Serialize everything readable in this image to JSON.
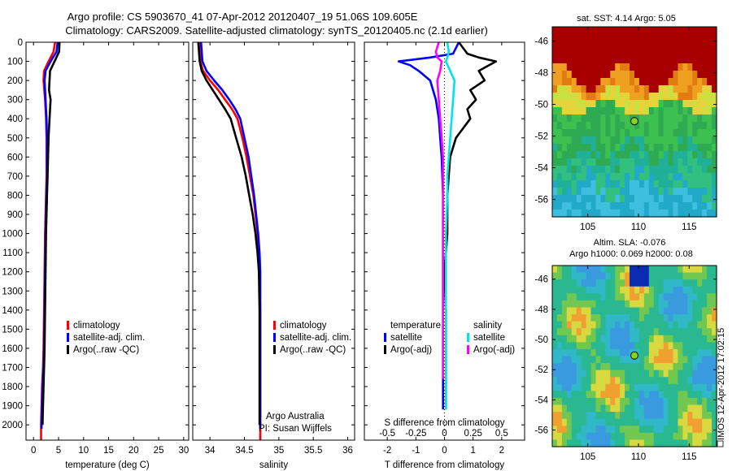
{
  "title": {
    "line1": "Argo profile: CS 5903670_41 07-Apr-2012 20120407_19 51.06S 109.605E",
    "line2": "Climatology: CARS2009. Satellite-adjusted climatology: synTS_20120405.nc (2.1d earlier)"
  },
  "colors": {
    "climatology": "#ff0000",
    "satellite": "#0000ff",
    "argo": "#000000",
    "sat_salinity": "#00e5e5",
    "argo_salinity": "#ff00ff"
  },
  "footer_credit": {
    "line1": "Argo Australia",
    "line2": "PI: Susan Wijffels"
  },
  "side_label": "IMOS 12-Apr-2012 17:02:15",
  "chart_data": [
    {
      "id": "temperature",
      "type": "line",
      "xlabel": "temperature (deg C)",
      "xticks": [
        "0",
        "5",
        "10",
        "15",
        "20",
        "25",
        "30"
      ],
      "xlim": [
        -1.5,
        31
      ],
      "ylim": [
        0,
        2080
      ],
      "yticks": [
        "0",
        "100",
        "200",
        "300",
        "400",
        "500",
        "600",
        "700",
        "800",
        "900",
        "1000",
        "1100",
        "1200",
        "1300",
        "1400",
        "1500",
        "1600",
        "1700",
        "1800",
        "1900",
        "2000"
      ],
      "legend": [
        "climatology",
        "satellite-adj. clim.",
        "Argo(..raw -QC)"
      ],
      "series": [
        {
          "name": "climatology",
          "color": "#ff0000",
          "x": [
            4.3,
            4.0,
            3.0,
            2.1,
            2.0,
            2.3,
            2.5,
            2.6,
            2.6,
            2.6,
            2.5,
            2.4,
            2.3,
            2.2,
            2.1,
            2.0,
            1.9,
            1.7,
            1.6,
            1.5,
            1.5
          ],
          "y": [
            0,
            50,
            100,
            150,
            200,
            300,
            400,
            500,
            600,
            700,
            800,
            900,
            1000,
            1200,
            1400,
            1600,
            1700,
            1800,
            1900,
            2000,
            2080
          ]
        },
        {
          "name": "satellite-adj. clim.",
          "color": "#0000ff",
          "x": [
            4.8,
            4.6,
            3.4,
            2.4,
            2.2,
            2.4,
            2.6,
            2.7,
            2.7,
            2.7,
            2.6,
            2.5,
            2.4,
            2.3,
            2.2,
            2.1,
            2.0,
            1.8,
            1.7,
            1.6,
            1.6
          ],
          "y": [
            0,
            50,
            100,
            150,
            200,
            300,
            400,
            500,
            600,
            700,
            800,
            900,
            1000,
            1200,
            1400,
            1600,
            1700,
            1800,
            1900,
            2000,
            2020
          ]
        },
        {
          "name": "Argo(..raw -QC)",
          "color": "#000000",
          "x": [
            5.2,
            5.1,
            4.2,
            3.3,
            3.2,
            3.1,
            3.4,
            3.2,
            3.0,
            2.9,
            2.8,
            2.7,
            2.6,
            2.5,
            2.4,
            2.3,
            2.2,
            2.1,
            2.0,
            1.9,
            1.8
          ],
          "y": [
            0,
            50,
            100,
            150,
            200,
            250,
            300,
            400,
            500,
            600,
            700,
            800,
            900,
            1000,
            1200,
            1400,
            1600,
            1700,
            1800,
            1900,
            2000
          ]
        }
      ]
    },
    {
      "id": "salinity",
      "type": "line",
      "xlabel": "salinity",
      "xticks": [
        "34",
        "34.5",
        "35",
        "35.5",
        "36"
      ],
      "xlim": [
        33.75,
        36.1
      ],
      "ylim": [
        0,
        2080
      ],
      "legend": [
        "climatology",
        "satellite-adj. clim.",
        "Argo(..raw -QC)"
      ],
      "series": [
        {
          "name": "climatology",
          "color": "#ff0000",
          "x": [
            33.85,
            33.86,
            33.9,
            34.0,
            34.12,
            34.22,
            34.32,
            34.4,
            34.47,
            34.53,
            34.58,
            34.63,
            34.66,
            34.69,
            34.71,
            34.72,
            34.73,
            34.73,
            34.73,
            34.73,
            34.73
          ],
          "y": [
            0,
            100,
            150,
            200,
            250,
            300,
            350,
            400,
            500,
            600,
            700,
            800,
            900,
            1000,
            1100,
            1200,
            1400,
            1600,
            1800,
            2000,
            2080
          ]
        },
        {
          "name": "satellite-adj. clim.",
          "color": "#0000ff",
          "x": [
            33.87,
            33.89,
            33.95,
            34.06,
            34.18,
            34.28,
            34.37,
            34.44,
            34.5,
            34.56,
            34.6,
            34.64,
            34.67,
            34.7,
            34.72,
            34.73,
            34.73,
            34.73,
            34.73,
            34.73,
            34.73
          ],
          "y": [
            0,
            100,
            150,
            200,
            250,
            300,
            350,
            400,
            500,
            600,
            700,
            800,
            900,
            1000,
            1100,
            1200,
            1400,
            1600,
            1800,
            1960,
            2020
          ]
        },
        {
          "name": "Argo(..raw -QC)",
          "color": "#000000",
          "x": [
            33.83,
            33.85,
            33.88,
            33.95,
            34.04,
            34.13,
            34.22,
            34.3,
            34.38,
            34.46,
            34.52,
            34.57,
            34.62,
            34.66,
            34.69,
            34.71,
            34.72,
            34.72,
            34.72,
            34.72,
            34.72
          ],
          "y": [
            0,
            100,
            150,
            200,
            250,
            300,
            350,
            400,
            500,
            600,
            700,
            800,
            900,
            1000,
            1100,
            1200,
            1400,
            1600,
            1800,
            1960,
            2000
          ]
        }
      ]
    },
    {
      "id": "difference",
      "type": "line",
      "xlabel": "T difference from climatology",
      "x2label": "S difference from climatology",
      "xticks": [
        "-2",
        "-1",
        "0",
        "1",
        "2"
      ],
      "x2ticks": [
        "-0.5",
        "-0.25",
        "0",
        "0.25",
        "0.5"
      ],
      "xlim": [
        -2.8,
        2.8
      ],
      "ylim": [
        0,
        2080
      ],
      "legend_headers": [
        "temperature",
        "salinity"
      ],
      "legend": [
        "satellite",
        "Argo(-adj)",
        "satellite",
        "Argo(-adj)"
      ],
      "series": [
        {
          "name": "satellite",
          "color": "#0000ff",
          "x": [
            0.5,
            0.3,
            -0.5,
            -1.6,
            -1.2,
            -0.9,
            -0.5,
            -0.3,
            -0.2,
            -0.15,
            -0.1,
            -0.05,
            -0.05,
            -0.05,
            -0.05,
            -0.05,
            -0.05,
            -0.05
          ],
          "y": [
            0,
            60,
            80,
            100,
            120,
            150,
            200,
            300,
            400,
            500,
            600,
            800,
            1000,
            1200,
            1400,
            1600,
            1800,
            1920
          ]
        },
        {
          "name": "Argo(-adj)",
          "color": "#000000",
          "x": [
            0.5,
            0.8,
            1.2,
            1.8,
            1.2,
            1.4,
            0.9,
            1.1,
            0.8,
            0.9,
            0.4,
            0.2,
            0.1,
            0.1,
            0.0,
            0.05,
            0.05,
            0.05
          ],
          "y": [
            0,
            60,
            80,
            100,
            150,
            200,
            250,
            300,
            350,
            400,
            500,
            600,
            800,
            1000,
            1200,
            1400,
            1600,
            1920
          ]
        },
        {
          "name": "satellite",
          "color": "#00e5e5",
          "x": [
            0.1,
            0.15,
            0.1,
            0.05,
            0.2,
            0.35,
            0.3,
            0.25,
            0.2,
            0.15,
            0.1,
            0.1,
            0.05,
            0.05,
            0.05,
            0.05,
            0.05,
            0.05
          ],
          "y": [
            0,
            50,
            80,
            100,
            150,
            200,
            300,
            400,
            500,
            600,
            700,
            800,
            1000,
            1200,
            1400,
            1600,
            1800,
            1920
          ]
        },
        {
          "name": "Argo(-adj)",
          "color": "#ff00ff",
          "x": [
            -0.2,
            -0.3,
            -0.25,
            -0.1,
            -0.15,
            -0.25,
            -0.2,
            -0.15,
            -0.1,
            -0.05,
            -0.05,
            -0.05,
            -0.05,
            -0.05,
            -0.05,
            -0.05,
            -0.05
          ],
          "y": [
            0,
            50,
            80,
            100,
            150,
            200,
            300,
            400,
            500,
            600,
            800,
            1000,
            1200,
            1400,
            1600,
            1700,
            1760
          ]
        }
      ]
    },
    {
      "id": "map_sst",
      "type": "heatmap",
      "title": "sat. SST: 4.14 Argo: 5.05",
      "xticks": [
        "105",
        "110",
        "115"
      ],
      "yticks": [
        "-46",
        "-48",
        "-50",
        "-52",
        "-54",
        "-56"
      ],
      "xlim": [
        101.5,
        117.7
      ],
      "ylim": [
        -57.1,
        -45.1
      ],
      "marker": {
        "lon": 109.605,
        "lat": -51.06
      }
    },
    {
      "id": "map_sla",
      "type": "heatmap",
      "title": "Altim. SLA: -0.076",
      "subtitle": "Argo h1000: 0.069 h2000: 0.08",
      "xticks": [
        "105",
        "110",
        "115"
      ],
      "yticks": [
        "-46",
        "-48",
        "-50",
        "-52",
        "-54",
        "-56"
      ],
      "xlim": [
        101.5,
        117.7
      ],
      "ylim": [
        -57.1,
        -45.1
      ],
      "marker": {
        "lon": 109.605,
        "lat": -51.06
      }
    }
  ]
}
